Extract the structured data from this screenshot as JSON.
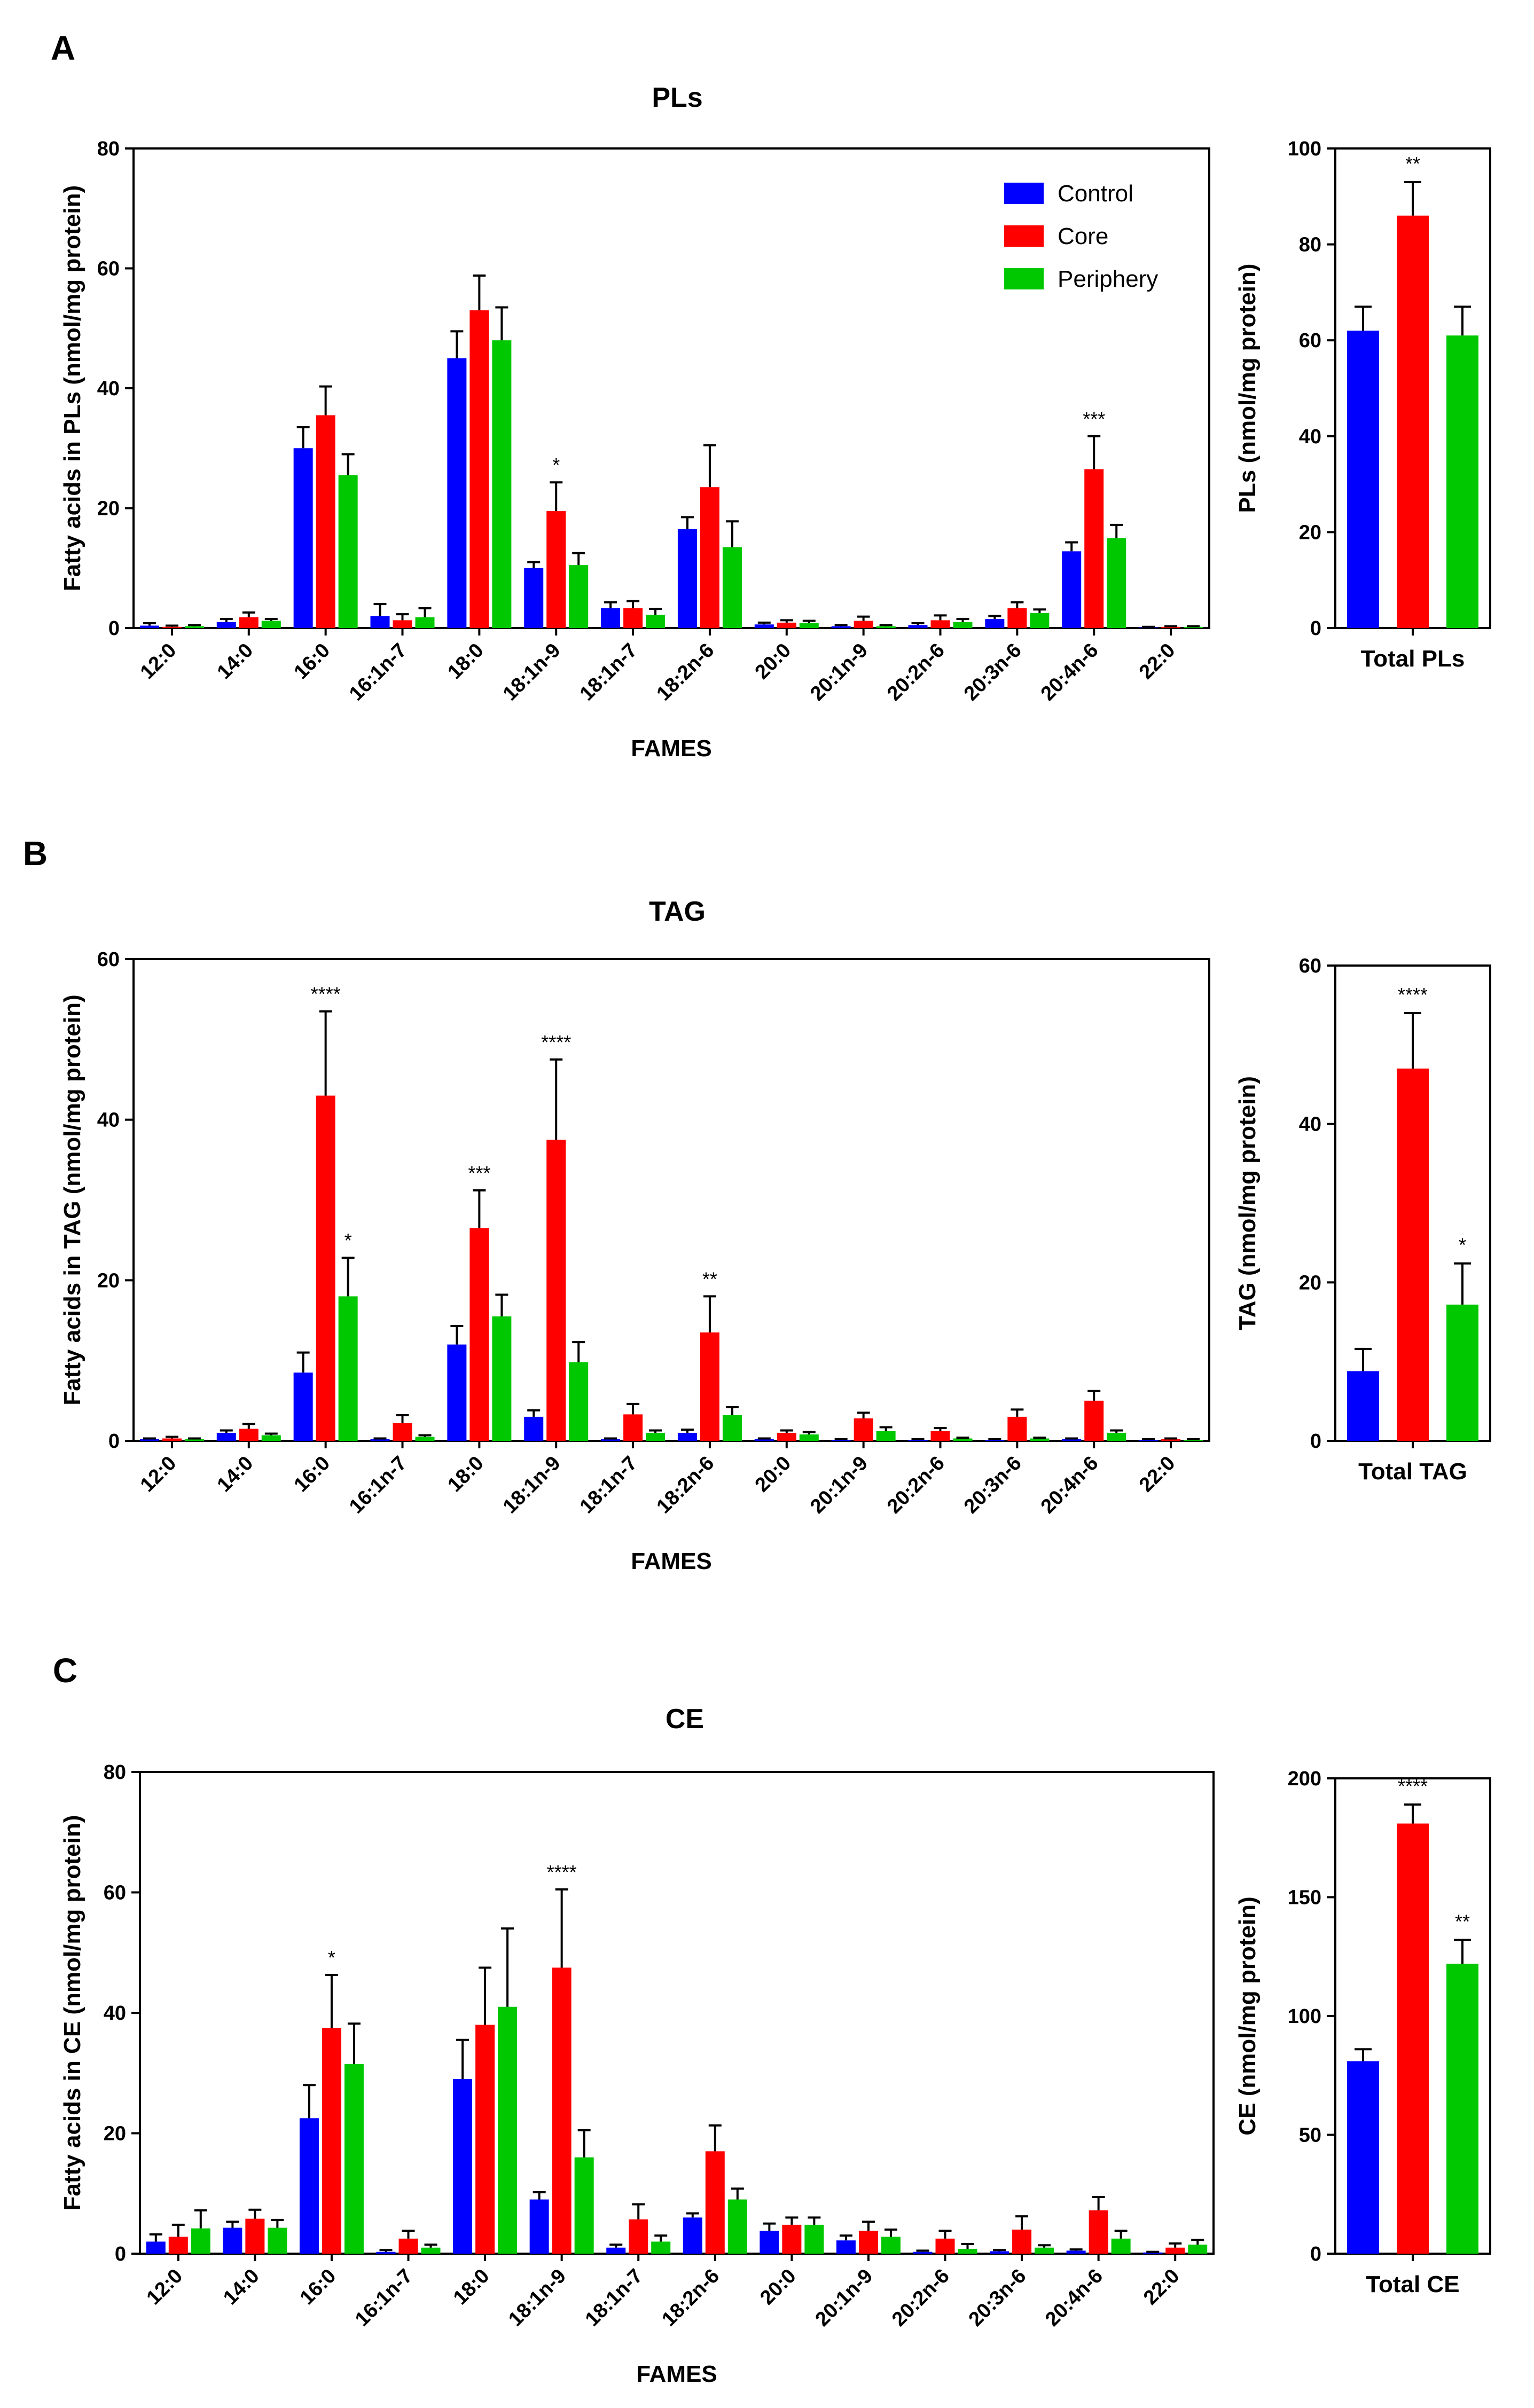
{
  "panels": [
    {
      "letter": "A",
      "title": "PLs"
    },
    {
      "letter": "B",
      "title": "TAG"
    },
    {
      "letter": "C",
      "title": "CE"
    }
  ],
  "legend": {
    "items": [
      "Control",
      "Core",
      "Periphery"
    ]
  },
  "colors": {
    "Control": "#0000ff",
    "Core": "#ff0000",
    "Periphery": "#00c800",
    "axis": "#000000"
  },
  "chart_data": [
    {
      "id": "A-main",
      "type": "bar",
      "panel": "A",
      "title": "PLs",
      "xlabel": "FAMES",
      "ylabel": "Fatty acids in PLs (nmol/mg protein)",
      "ylim": [
        0,
        80
      ],
      "yticks": [
        0,
        20,
        40,
        60,
        80
      ],
      "categories": [
        "12:0",
        "14:0",
        "16:0",
        "16:1n-7",
        "18:0",
        "18:1n-9",
        "18:1n-7",
        "18:2n-6",
        "20:0",
        "20:1n-9",
        "20:2n-6",
        "20:3n-6",
        "20:4n-6",
        "22:0"
      ],
      "series": [
        {
          "name": "Control",
          "values": [
            0.4,
            1.0,
            30,
            2.0,
            45,
            10,
            3.3,
            16.5,
            0.6,
            0.3,
            0.5,
            1.5,
            12.8,
            0.1
          ],
          "errors": [
            0.4,
            0.5,
            3.5,
            2.0,
            4.5,
            1.0,
            1.0,
            2.0,
            0.3,
            0.2,
            0.3,
            0.5,
            1.5,
            0.1
          ]
        },
        {
          "name": "Core",
          "values": [
            0.2,
            1.8,
            35.5,
            1.3,
            53,
            19.5,
            3.3,
            23.5,
            0.9,
            1.2,
            1.3,
            3.3,
            26.5,
            0.2
          ],
          "errors": [
            0.2,
            0.8,
            4.8,
            1.0,
            5.8,
            4.8,
            1.2,
            7.0,
            0.4,
            0.7,
            0.8,
            1.0,
            5.5,
            0.1
          ]
        },
        {
          "name": "Periphery",
          "values": [
            0.3,
            1.2,
            25.5,
            1.8,
            48,
            10.5,
            2.2,
            13.5,
            0.8,
            0.3,
            1.0,
            2.5,
            15,
            0.2
          ],
          "errors": [
            0.2,
            0.3,
            3.5,
            1.5,
            5.5,
            2.0,
            1.0,
            4.3,
            0.4,
            0.2,
            0.5,
            0.6,
            2.2,
            0.1
          ]
        }
      ],
      "annotations": [
        {
          "category_index": 5,
          "series_index": 1,
          "text": "*"
        },
        {
          "category_index": 12,
          "series_index": 1,
          "text": "***"
        }
      ]
    },
    {
      "id": "A-total",
      "type": "bar",
      "panel": "A",
      "xlabel": "Total PLs",
      "ylabel": "PLs (nmol/mg protein)",
      "ylim": [
        0,
        100
      ],
      "yticks": [
        0,
        20,
        40,
        60,
        80,
        100
      ],
      "series": [
        {
          "name": "Control",
          "value": 62,
          "error": 5
        },
        {
          "name": "Core",
          "value": 86,
          "error": 7
        },
        {
          "name": "Periphery",
          "value": 61,
          "error": 6
        }
      ],
      "annotations": [
        {
          "series_index": 1,
          "text": "**"
        }
      ]
    },
    {
      "id": "B-main",
      "type": "bar",
      "panel": "B",
      "title": "TAG",
      "xlabel": "FAMES",
      "ylabel": "Fatty acids in TAG (nmol/mg protein)",
      "ylim": [
        0,
        60
      ],
      "yticks": [
        0,
        20,
        40,
        60
      ],
      "categories": [
        "12:0",
        "14:0",
        "16:0",
        "16:1n-7",
        "18:0",
        "18:1n-9",
        "18:1n-7",
        "18:2n-6",
        "20:0",
        "20:1n-9",
        "20:2n-6",
        "20:3n-6",
        "20:4n-6",
        "22:0"
      ],
      "series": [
        {
          "name": "Control",
          "values": [
            0.2,
            1.0,
            8.5,
            0.2,
            12,
            3.0,
            0.2,
            1.0,
            0.2,
            0.1,
            0.1,
            0.1,
            0.2,
            0.1
          ],
          "errors": [
            0.1,
            0.3,
            2.5,
            0.1,
            2.3,
            0.8,
            0.1,
            0.4,
            0.1,
            0.1,
            0.1,
            0.1,
            0.1,
            0.1
          ]
        },
        {
          "name": "Core",
          "values": [
            0.3,
            1.5,
            43,
            2.2,
            26.5,
            37.5,
            3.3,
            13.5,
            1.0,
            2.8,
            1.2,
            3.0,
            5.0,
            0.2
          ],
          "errors": [
            0.2,
            0.6,
            10.5,
            1.0,
            4.7,
            10.0,
            1.3,
            4.5,
            0.3,
            0.7,
            0.4,
            0.9,
            1.2,
            0.1
          ]
        },
        {
          "name": "Periphery",
          "values": [
            0.2,
            0.7,
            18,
            0.5,
            15.5,
            9.8,
            1.0,
            3.2,
            0.8,
            1.2,
            0.3,
            0.3,
            1.0,
            0.1
          ],
          "errors": [
            0.1,
            0.2,
            4.8,
            0.2,
            2.7,
            2.5,
            0.3,
            1.0,
            0.3,
            0.5,
            0.1,
            0.1,
            0.3,
            0.1
          ]
        }
      ],
      "annotations": [
        {
          "category_index": 2,
          "series_index": 1,
          "text": "****"
        },
        {
          "category_index": 2,
          "series_index": 2,
          "text": "*"
        },
        {
          "category_index": 4,
          "series_index": 1,
          "text": "***"
        },
        {
          "category_index": 5,
          "series_index": 1,
          "text": "****"
        },
        {
          "category_index": 7,
          "series_index": 1,
          "text": "**"
        }
      ]
    },
    {
      "id": "B-total",
      "type": "bar",
      "panel": "B",
      "xlabel": "Total TAG",
      "ylabel": "TAG (nmol/mg protein)",
      "ylim": [
        0,
        60
      ],
      "yticks": [
        0,
        20,
        40,
        60
      ],
      "series": [
        {
          "name": "Control",
          "value": 8.8,
          "error": 2.8
        },
        {
          "name": "Core",
          "value": 47,
          "error": 7
        },
        {
          "name": "Periphery",
          "value": 17.2,
          "error": 5.2
        }
      ],
      "annotations": [
        {
          "series_index": 1,
          "text": "****"
        },
        {
          "series_index": 2,
          "text": "*"
        }
      ]
    },
    {
      "id": "C-main",
      "type": "bar",
      "panel": "C",
      "title": "CE",
      "xlabel": "FAMES",
      "ylabel": "Fatty acids in CE (nmol/mg protein)",
      "ylim": [
        0,
        80
      ],
      "yticks": [
        0,
        20,
        40,
        60,
        80
      ],
      "categories": [
        "12:0",
        "14:0",
        "16:0",
        "16:1n-7",
        "18:0",
        "18:1n-9",
        "18:1n-7",
        "18:2n-6",
        "20:0",
        "20:1n-9",
        "20:2n-6",
        "20:3n-6",
        "20:4n-6",
        "22:0"
      ],
      "series": [
        {
          "name": "Control",
          "values": [
            2.0,
            4.3,
            22.5,
            0.3,
            29,
            9.0,
            1.0,
            6.0,
            3.8,
            2.2,
            0.3,
            0.4,
            0.5,
            0.2
          ],
          "errors": [
            1.2,
            1.0,
            5.5,
            0.3,
            6.5,
            1.2,
            0.5,
            0.7,
            1.2,
            0.8,
            0.2,
            0.2,
            0.2,
            0.1
          ]
        },
        {
          "name": "Core",
          "values": [
            2.8,
            5.8,
            37.5,
            2.5,
            38,
            47.5,
            5.7,
            17,
            4.8,
            3.8,
            2.5,
            4.0,
            7.2,
            1.0
          ],
          "errors": [
            2.0,
            1.5,
            8.8,
            1.3,
            9.5,
            13.0,
            2.5,
            4.3,
            1.2,
            1.5,
            1.3,
            2.2,
            2.2,
            0.7
          ]
        },
        {
          "name": "Periphery",
          "values": [
            4.2,
            4.3,
            31.5,
            1.0,
            41,
            16,
            2.0,
            9.0,
            4.8,
            2.8,
            0.8,
            1.0,
            2.5,
            1.5
          ],
          "errors": [
            3.0,
            1.3,
            6.7,
            0.5,
            13,
            4.5,
            1.0,
            1.8,
            1.2,
            1.2,
            0.8,
            0.4,
            1.3,
            0.8
          ]
        }
      ],
      "annotations": [
        {
          "category_index": 2,
          "series_index": 1,
          "text": "*"
        },
        {
          "category_index": 5,
          "series_index": 1,
          "text": "****"
        }
      ]
    },
    {
      "id": "C-total",
      "type": "bar",
      "panel": "C",
      "xlabel": "Total CE",
      "ylabel": "CE (nmol/mg protein)",
      "ylim": [
        0,
        200
      ],
      "yticks": [
        0,
        50,
        100,
        150,
        200
      ],
      "series": [
        {
          "name": "Control",
          "value": 81,
          "error": 5
        },
        {
          "name": "Core",
          "value": 181,
          "error": 8
        },
        {
          "name": "Periphery",
          "value": 122,
          "error": 10
        }
      ],
      "annotations": [
        {
          "series_index": 1,
          "text": "****"
        },
        {
          "series_index": 2,
          "text": "**"
        }
      ]
    }
  ]
}
